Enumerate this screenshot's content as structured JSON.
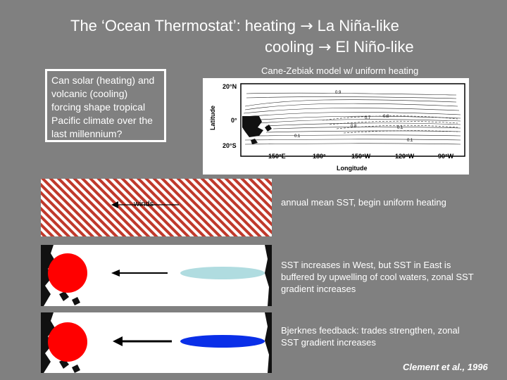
{
  "title": {
    "line1_prefix": "The ‘Ocean Thermostat’:  heating ",
    "line1_arrow": "→",
    "line1_suffix": " La Niña-like",
    "line2_prefix": "cooling ",
    "line2_arrow": "→",
    "line2_suffix": " El Niño-like"
  },
  "question_box": {
    "text": "Can solar (heating) and volcanic (cooling) forcing shape tropical Pacific climate over the last millennium?"
  },
  "model_map": {
    "title": "Cane-Zebiak model w/ uniform heating",
    "ylabel": "Latitude",
    "xlabel": "Longitude",
    "y_ticks": [
      "20°N",
      "0°",
      "20°S"
    ],
    "x_ticks": [
      "150°E",
      "180°",
      "150°W",
      "120°W",
      "90°W"
    ],
    "contour_labels": [
      "0.9",
      "0.8",
      "0.7",
      "0.8",
      "0.1",
      "0.1",
      "0.1"
    ]
  },
  "panels": [
    {
      "winds_label": "winds",
      "caption": "annual mean SST, begin uniform heating",
      "colors": {
        "hatch": "#c0392b",
        "background": "#ffffff"
      }
    },
    {
      "caption": "SST increases in West, but SST in East is buffered by upwelling of cool waters, zonal SST gradient increases",
      "colors": {
        "warm_pool": "#ff0000",
        "cold_tongue": "#b0dce0"
      }
    },
    {
      "caption": "Bjerknes feedback:  trades strengthen, zonal SST gradient increases",
      "colors": {
        "warm_pool": "#ff0000",
        "cold_tongue": "#0a2fe8"
      }
    }
  ],
  "credit": "Clement et al., 1996"
}
